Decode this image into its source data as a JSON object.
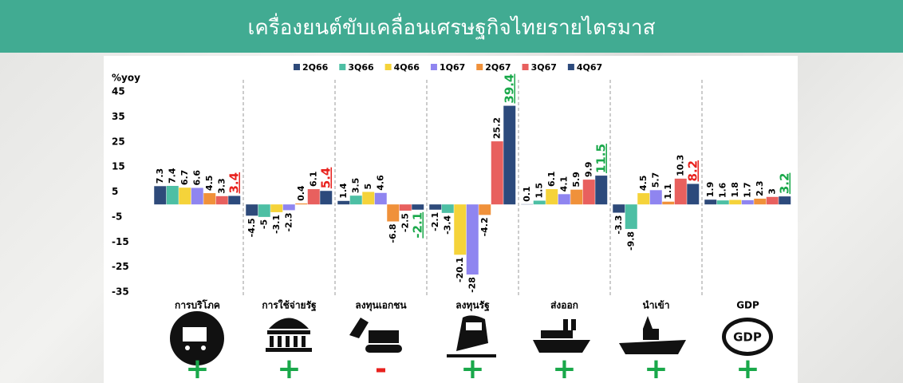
{
  "header": {
    "title": "เครื่องยนต์ขับเคลื่อนเศรษฐกิจไทยรายไตรมาส"
  },
  "chart_data": {
    "type": "bar",
    "ylabel": "%yoy",
    "categories": [
      "การบริโภค",
      "การใช้จ่ายรัฐ",
      "ลงทุนเอกชน",
      "ลงทุนรัฐ",
      "ส่งออก",
      "นำเข้า",
      "GDP"
    ],
    "series": [
      {
        "name": "2Q66",
        "color": "#2e4a7a",
        "values": [
          7.3,
          -4.5,
          1.4,
          -2.1,
          0.1,
          -3.3,
          1.9
        ]
      },
      {
        "name": "3Q66",
        "color": "#4dbfa4",
        "values": [
          7.4,
          -5.0,
          3.5,
          -3.4,
          1.5,
          -9.8,
          1.6
        ]
      },
      {
        "name": "4Q66",
        "color": "#f5d33a",
        "values": [
          6.7,
          -3.1,
          5.0,
          -20.1,
          6.1,
          4.5,
          1.8
        ]
      },
      {
        "name": "1Q67",
        "color": "#8f85f0",
        "values": [
          6.6,
          -2.3,
          4.6,
          -28,
          4.1,
          5.7,
          1.7
        ]
      },
      {
        "name": "2Q67",
        "color": "#f0913a",
        "values": [
          4.5,
          0.4,
          -6.8,
          -4.2,
          5.9,
          1.1,
          2.3
        ]
      },
      {
        "name": "3Q67",
        "color": "#e8605e",
        "values": [
          3.3,
          6.1,
          -2.5,
          25.2,
          9.9,
          10.3,
          3.0
        ]
      },
      {
        "name": "4Q67",
        "color": "#2c4a7c",
        "values": [
          3.4,
          5.4,
          -2.1,
          39.4,
          11.5,
          8.2,
          3.2
        ]
      }
    ],
    "highlight_colors": [
      "#e8211d",
      "#e8211d",
      "#19a84a",
      "#19a84a",
      "#19a84a",
      "#e8211d",
      "#19a84a"
    ],
    "signs": [
      "+",
      "+",
      "-",
      "+",
      "+",
      "+",
      "+"
    ],
    "sign_colors": [
      "#19a84a",
      "#19a84a",
      "#e8211d",
      "#19a84a",
      "#19a84a",
      "#19a84a",
      "#19a84a"
    ],
    "ylim": [
      -35,
      45
    ],
    "yticks": [
      45,
      35,
      25,
      15,
      5,
      -5,
      -15,
      -25,
      -35
    ]
  }
}
